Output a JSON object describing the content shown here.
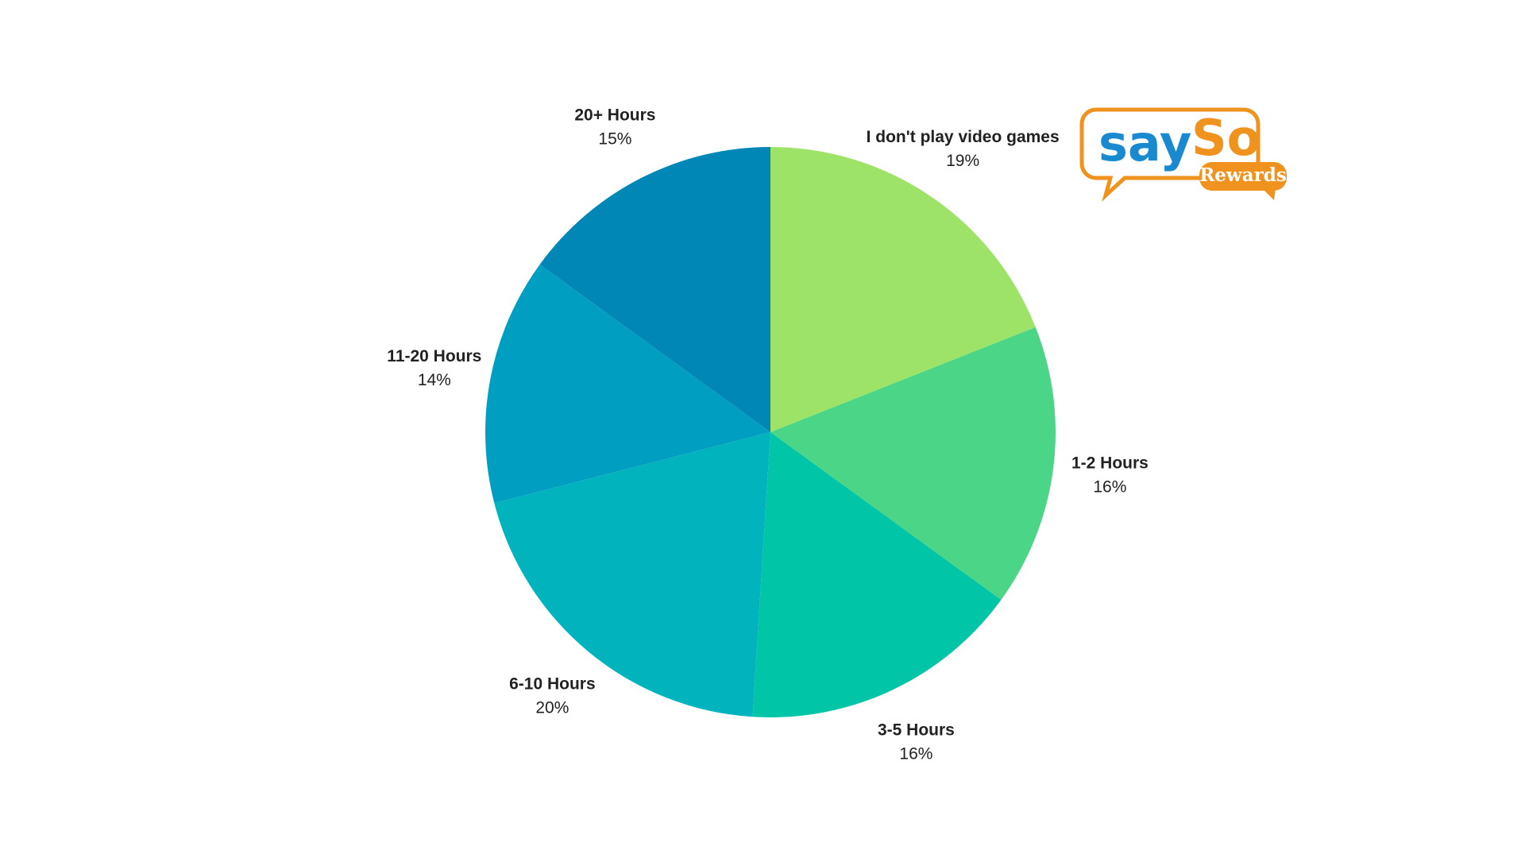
{
  "chart_data": {
    "type": "pie",
    "categories": [
      "I don't play video games",
      "1-2 Hours",
      "3-5 Hours",
      "6-10 Hours",
      "11-20 Hours",
      "20+ Hours"
    ],
    "values": [
      19,
      16,
      16,
      20,
      14,
      15
    ],
    "value_labels": [
      "19%",
      "16%",
      "16%",
      "20%",
      "14%",
      "15%"
    ],
    "colors": [
      "#9de367",
      "#4ad686",
      "#00c6a7",
      "#00b3bd",
      "#009fc2",
      "#0087b6"
    ]
  },
  "logo": {
    "parts": [
      "say",
      "So"
    ],
    "badge": "Rewards"
  }
}
